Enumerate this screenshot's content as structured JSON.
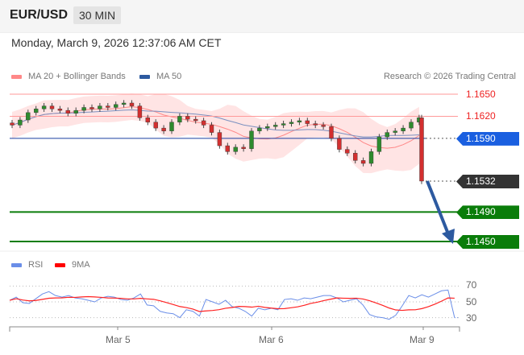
{
  "header": {
    "symbol": "EUR/USD",
    "timeframe": "30 MIN",
    "datetime": "Monday, March 9, 2026 12:37:06 AM CET"
  },
  "legend": {
    "ma20": "MA 20 + Bollinger Bands",
    "ma50": "MA 50",
    "credit": "Research © 2026 Trading Central"
  },
  "colors": {
    "resistance": "#ff3333",
    "pivot": "#1a5fe0",
    "support": "#0a7d0a",
    "last": "#333333",
    "up": "#2e8b2e",
    "down": "#d32f2f"
  },
  "chart_data": [
    {
      "type": "candlestick",
      "ylim": [
        1.144,
        1.1665
      ],
      "x_ticks": [
        "Mar 5",
        "Mar 6",
        "Mar 9"
      ],
      "closes": [
        1.1608,
        1.1615,
        1.1625,
        1.163,
        1.1634,
        1.163,
        1.1628,
        1.1624,
        1.1628,
        1.1632,
        1.163,
        1.1634,
        1.1632,
        1.1636,
        1.1638,
        1.1634,
        1.1618,
        1.1612,
        1.1604,
        1.16,
        1.1612,
        1.162,
        1.1616,
        1.1614,
        1.1608,
        1.1598,
        1.158,
        1.1572,
        1.1578,
        1.1576,
        1.16,
        1.1604,
        1.1606,
        1.1608,
        1.161,
        1.1612,
        1.1614,
        1.161,
        1.1608,
        1.1606,
        1.159,
        1.1575,
        1.157,
        1.156,
        1.1556,
        1.1572,
        1.1592,
        1.1598,
        1.16,
        1.1604,
        1.1612,
        1.1618,
        1.1532
      ],
      "levels": [
        {
          "label": "1.1650",
          "value": 1.165,
          "kind": "resistance"
        },
        {
          "label": "1.1620",
          "value": 1.162,
          "kind": "resistance"
        },
        {
          "label": "1.1590",
          "value": 1.159,
          "kind": "pivot"
        },
        {
          "label": "1.1532",
          "value": 1.1532,
          "kind": "last"
        },
        {
          "label": "1.1490",
          "value": 1.149,
          "kind": "support"
        },
        {
          "label": "1.1450",
          "value": 1.145,
          "kind": "support"
        }
      ],
      "forecast_arrow": {
        "from": 1.1532,
        "to": 1.145
      }
    },
    {
      "type": "line",
      "legend": [
        "RSI",
        "9MA"
      ],
      "y_ticks": [
        "70",
        "50",
        "30"
      ],
      "ylim": [
        25,
        75
      ],
      "rsi": [
        52,
        56,
        49,
        48,
        54,
        60,
        63,
        58,
        56,
        58,
        55,
        54,
        52,
        50,
        55,
        57,
        56,
        53,
        52,
        55,
        60,
        46,
        45,
        38,
        36,
        35,
        30,
        40,
        38,
        32,
        53,
        50,
        47,
        52,
        44,
        42,
        38,
        32,
        42,
        40,
        42,
        40,
        53,
        54,
        52,
        55,
        54,
        56,
        58,
        58,
        55,
        50,
        52,
        54,
        46,
        34,
        31,
        30,
        28,
        33,
        45,
        58,
        55,
        59,
        56,
        60,
        64,
        65,
        30,
        30
      ]
    }
  ]
}
